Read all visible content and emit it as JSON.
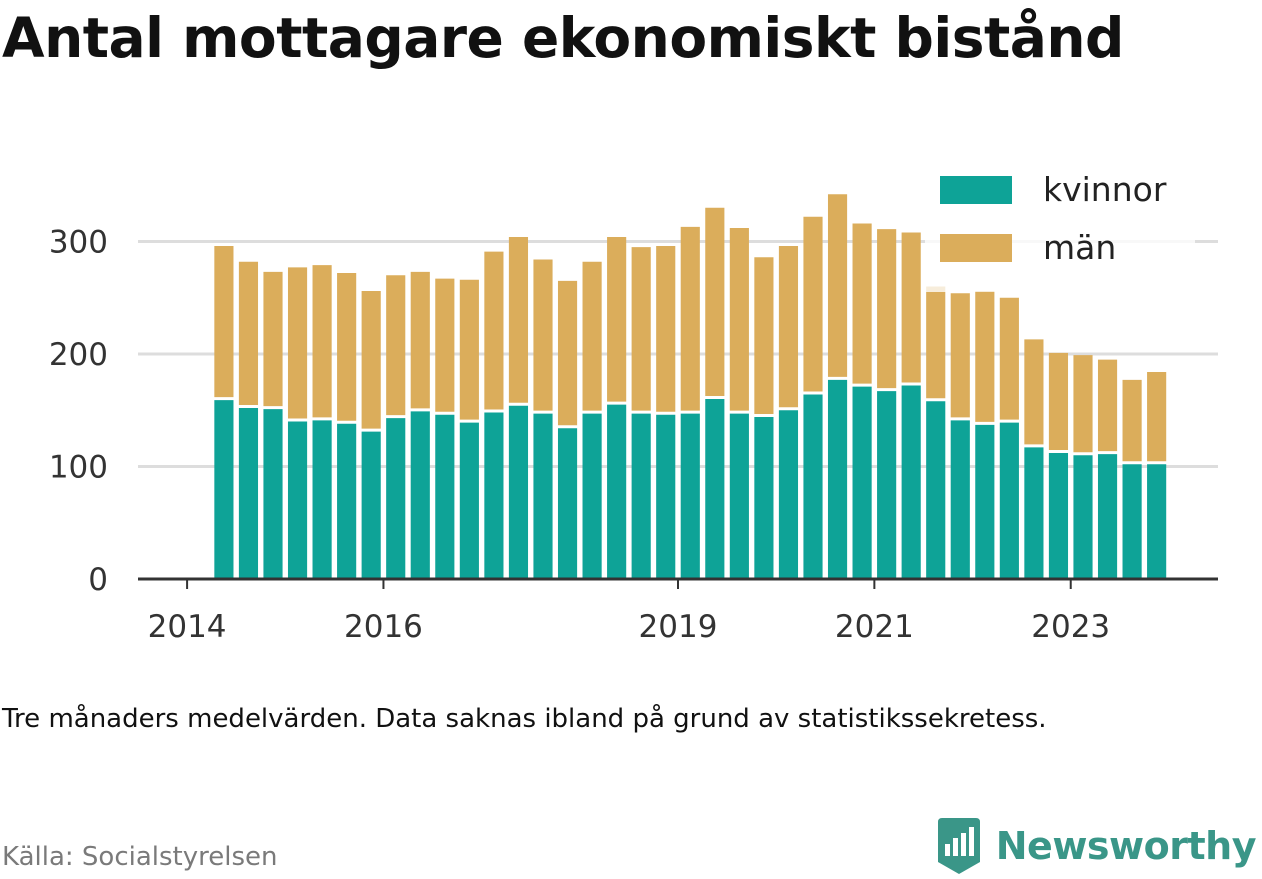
{
  "title": "Antal mottagare ekonomiskt bistånd",
  "note": "Tre månaders medelvärden. Data saknas ibland på grund av statistikssekretess.",
  "source": "Källa: Socialstyrelsen",
  "brand": {
    "name": "Newsworthy",
    "icon": "newsworthy-logo-icon"
  },
  "colors": {
    "kvinnor": "#0ea397",
    "man": "#dbad5b",
    "grid": "#dddddd",
    "axis": "#333333"
  },
  "chart_data": {
    "type": "bar",
    "stacked": true,
    "ylim": [
      0,
      350
    ],
    "yticks": [
      0,
      100,
      200,
      300
    ],
    "xticks": [
      {
        "label": "2014",
        "position": 2014.0
      },
      {
        "label": "2016",
        "position": 2016.0
      },
      {
        "label": "2019",
        "position": 2019.0
      },
      {
        "label": "2021",
        "position": 2021.0
      },
      {
        "label": "2023",
        "position": 2023.0
      }
    ],
    "xlim": [
      2013.5,
      2024.5
    ],
    "grid": true,
    "legend_position": "top-right",
    "x": [
      2014.375,
      2014.625,
      2014.875,
      2015.125,
      2015.375,
      2015.625,
      2015.875,
      2016.125,
      2016.375,
      2016.625,
      2016.875,
      2017.125,
      2017.375,
      2017.625,
      2017.875,
      2018.125,
      2018.375,
      2018.625,
      2018.875,
      2019.125,
      2019.375,
      2019.625,
      2019.875,
      2020.125,
      2020.375,
      2020.625,
      2020.875,
      2021.125,
      2021.375,
      2021.625,
      2021.875,
      2022.125,
      2022.375,
      2022.625,
      2022.875,
      2023.125,
      2023.375,
      2023.625,
      2023.875
    ],
    "series": [
      {
        "name": "kvinnor",
        "values": [
          159,
          152,
          151,
          140,
          141,
          138,
          131,
          143,
          149,
          146,
          139,
          148,
          154,
          147,
          134,
          147,
          155,
          147,
          146,
          147,
          160,
          147,
          144,
          150,
          164,
          177,
          171,
          167,
          172,
          158,
          141,
          137,
          139,
          117,
          112,
          110,
          111,
          102,
          102
        ]
      },
      {
        "name": "män",
        "values": [
          137,
          130,
          122,
          137,
          138,
          134,
          125,
          127,
          124,
          121,
          127,
          143,
          150,
          137,
          131,
          135,
          149,
          148,
          150,
          166,
          170,
          165,
          142,
          146,
          158,
          165,
          145,
          144,
          136,
          102,
          113,
          119,
          111,
          96,
          89,
          89,
          84,
          75,
          82
        ]
      }
    ]
  }
}
